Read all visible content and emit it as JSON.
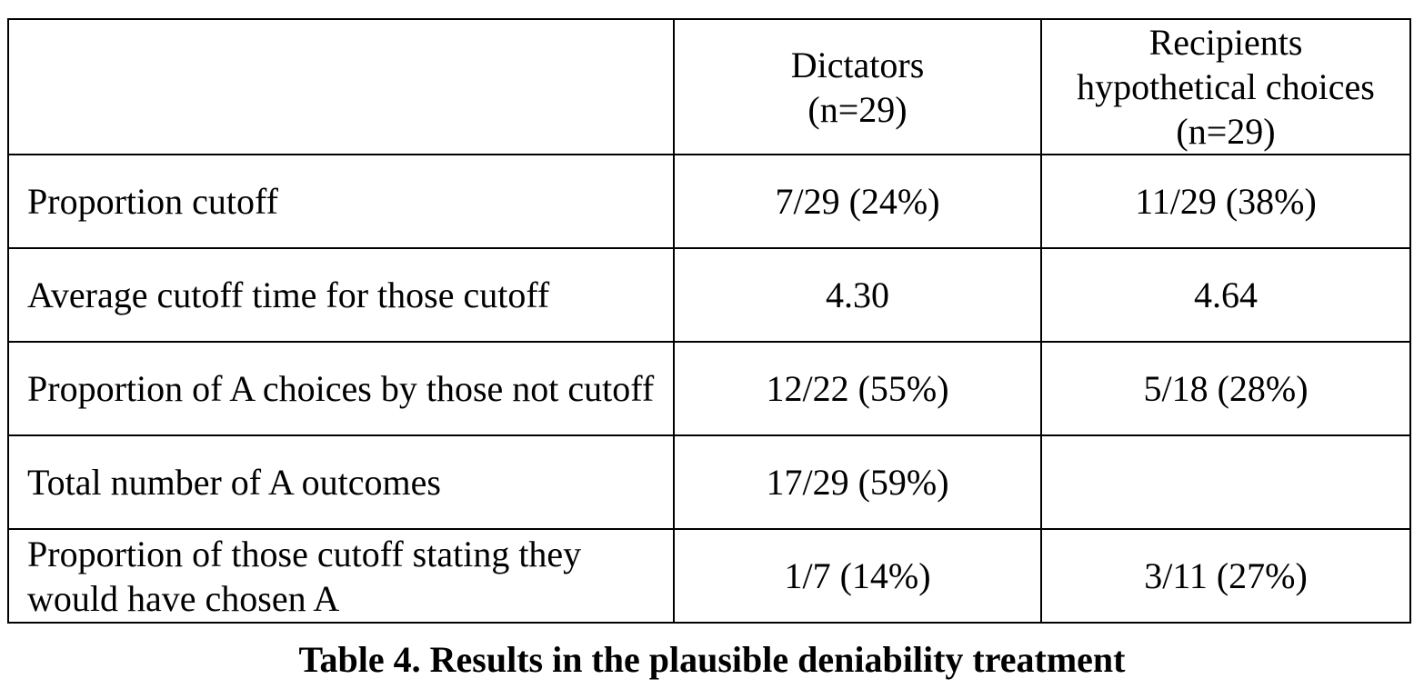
{
  "table": {
    "header": {
      "corner": "",
      "dictators": [
        "Dictators",
        "(n=29)"
      ],
      "recipients": [
        "Recipients",
        "hypothetical choices",
        "(n=29)"
      ]
    },
    "rows": [
      {
        "label": "Proportion cutoff",
        "dictators": "7/29 (24%)",
        "recipients": "11/29 (38%)"
      },
      {
        "label": "Average cutoff time for those cutoff",
        "dictators": "4.30",
        "recipients": "4.64"
      },
      {
        "label": "Proportion of A choices by those not cutoff",
        "dictators": "12/22 (55%)",
        "recipients": "5/18 (28%)"
      },
      {
        "label": "Total number of A outcomes",
        "dictators": "17/29 (59%)",
        "recipients": ""
      },
      {
        "label": "Proportion of those cutoff stating they would have chosen A",
        "dictators": "1/7 (14%)",
        "recipients": "3/11 (27%)"
      }
    ]
  },
  "caption": "Table 4.  Results in the plausible deniability treatment"
}
